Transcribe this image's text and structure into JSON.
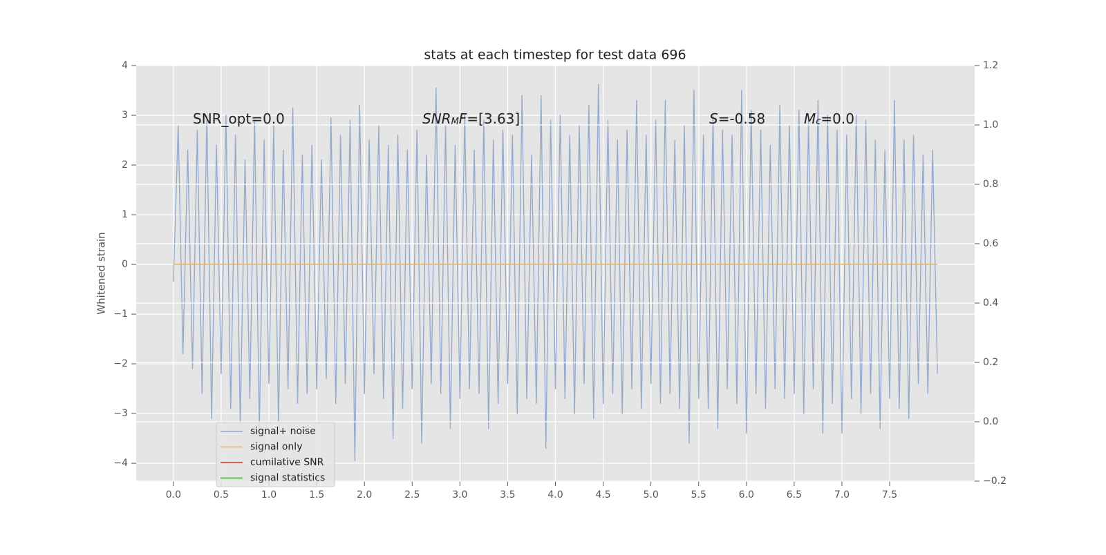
{
  "chart_data": {
    "type": "line",
    "title": "stats at each timestep for test data 696",
    "ylabel": "Whitened strain",
    "xlim": [
      -0.39,
      8.39
    ],
    "ylim": [
      -4.36,
      4.0
    ],
    "y2lim": [
      -0.2,
      1.2
    ],
    "xticks": [
      {
        "value": 0,
        "label": "0.0"
      },
      0.5,
      {
        "value": 1,
        "label": "1.0"
      },
      1.5,
      {
        "value": 2,
        "label": "2.0"
      },
      2.5,
      {
        "value": 3,
        "label": "3.0"
      },
      3.5,
      {
        "value": 4,
        "label": "4.0"
      },
      4.5,
      {
        "value": 5,
        "label": "5.0"
      },
      5.5,
      {
        "value": 6,
        "label": "6.0"
      },
      6.5,
      {
        "value": 7,
        "label": "7.0"
      },
      7.5
    ],
    "yticks": [
      {
        "value": -4,
        "label": "−4"
      },
      {
        "value": -3,
        "label": "−3"
      },
      {
        "value": -2,
        "label": "−2"
      },
      {
        "value": -1,
        "label": "−1"
      },
      0,
      1,
      2,
      3,
      4
    ],
    "y2ticks": [
      {
        "value": -0.2,
        "label": "−0.2"
      },
      {
        "value": 0,
        "label": "0.0"
      },
      0.2,
      0.4,
      0.6,
      0.8,
      {
        "value": 1,
        "label": "1.0"
      },
      1.2
    ],
    "grid": true,
    "legend": "lower left",
    "annotations": [
      [
        {
          "text": "SNR_opt=0.0"
        }
      ],
      [
        {
          "text": "SNR",
          "italic": true
        },
        {
          "text": "M",
          "italic": true,
          "sub": true
        },
        {
          "text": "F",
          "italic": true
        },
        {
          "text": "=[3.63]"
        }
      ],
      [
        {
          "text": "S",
          "italic": true
        },
        {
          "text": "=-0.58"
        }
      ],
      [
        {
          "text": "M",
          "italic": true
        },
        {
          "text": "c",
          "italic": true,
          "sub": true
        },
        {
          "text": "=0.0"
        }
      ]
    ],
    "series": [
      {
        "name": "signal+ noise",
        "color": "#97aacd",
        "x": [
          0,
          0.05,
          0.1,
          0.15,
          0.2,
          0.25,
          0.3,
          0.35,
          0.4,
          0.45,
          0.5,
          0.55,
          0.6,
          0.65,
          0.7,
          0.75,
          0.8,
          0.85,
          0.9,
          0.95,
          1,
          1.05,
          1.1,
          1.15,
          1.2,
          1.25,
          1.3,
          1.35,
          1.4,
          1.45,
          1.5,
          1.55,
          1.6,
          1.65,
          1.7,
          1.75,
          1.8,
          1.85,
          1.9,
          1.95,
          2,
          2.05,
          2.1,
          2.15,
          2.2,
          2.25,
          2.3,
          2.35,
          2.4,
          2.45,
          2.5,
          2.55,
          2.6,
          2.65,
          2.7,
          2.75,
          2.8,
          2.85,
          2.9,
          2.95,
          3,
          3.05,
          3.1,
          3.15,
          3.2,
          3.25,
          3.3,
          3.35,
          3.4,
          3.45,
          3.5,
          3.55,
          3.6,
          3.65,
          3.7,
          3.75,
          3.8,
          3.85,
          3.9,
          3.95,
          4,
          4.05,
          4.1,
          4.15,
          4.2,
          4.25,
          4.3,
          4.35,
          4.4,
          4.45,
          4.5,
          4.55,
          4.6,
          4.65,
          4.7,
          4.75,
          4.8,
          4.85,
          4.9,
          4.95,
          5,
          5.05,
          5.1,
          5.15,
          5.2,
          5.25,
          5.3,
          5.35,
          5.4,
          5.45,
          5.5,
          5.55,
          5.6,
          5.65,
          5.7,
          5.75,
          5.8,
          5.85,
          5.9,
          5.95,
          6,
          6.05,
          6.1,
          6.15,
          6.2,
          6.25,
          6.3,
          6.35,
          6.4,
          6.45,
          6.5,
          6.55,
          6.6,
          6.65,
          6.7,
          6.75,
          6.8,
          6.85,
          6.9,
          6.95,
          7,
          7.05,
          7.1,
          7.15,
          7.2,
          7.25,
          7.3,
          7.35,
          7.4,
          7.45,
          7.5,
          7.55,
          7.6,
          7.65,
          7.7,
          7.75,
          7.8,
          7.85,
          7.9,
          7.95,
          8
        ],
        "values": [
          -0.35,
          2.8,
          -1.8,
          2.3,
          -2.1,
          2.7,
          -2.6,
          3.0,
          -3.1,
          2.4,
          -2.2,
          3.0,
          -2.9,
          2.6,
          -3.2,
          2.1,
          -2.7,
          2.9,
          -3.3,
          2.5,
          -2.4,
          2.8,
          -3.2,
          2.3,
          -2.5,
          3.15,
          -2.8,
          2.2,
          -2.6,
          2.4,
          -2.5,
          2.1,
          -2.3,
          2.95,
          -2.8,
          2.6,
          -2.4,
          2.9,
          -3.95,
          3.2,
          -2.6,
          2.5,
          -2.2,
          2.8,
          -2.7,
          2.4,
          -3.5,
          2.6,
          -2.9,
          2.3,
          -2.5,
          2.7,
          -3.6,
          2.2,
          -2.4,
          3.55,
          -2.6,
          2.8,
          -3.3,
          2.4,
          -2.7,
          3.0,
          -2.5,
          2.3,
          -2.6,
          2.9,
          -3.3,
          2.5,
          -2.8,
          2.7,
          -2.4,
          2.6,
          -3.0,
          3.4,
          -2.7,
          2.2,
          -2.8,
          3.4,
          -3.7,
          2.9,
          -2.5,
          3.0,
          -2.7,
          2.6,
          -3.0,
          2.8,
          -2.4,
          3.2,
          -3.1,
          3.62,
          -2.8,
          2.9,
          -2.6,
          2.5,
          -3.0,
          2.7,
          -2.5,
          3.3,
          -2.9,
          2.6,
          -2.4,
          2.9,
          -2.8,
          3.3,
          -2.6,
          2.5,
          -2.9,
          2.8,
          -3.6,
          3.5,
          -2.7,
          2.6,
          -2.9,
          3.0,
          -3.3,
          2.7,
          -2.5,
          2.6,
          -2.8,
          3.5,
          -3.4,
          3.1,
          -2.6,
          2.7,
          -2.9,
          2.4,
          -2.5,
          3.2,
          -2.7,
          2.8,
          -2.6,
          3.1,
          -3.0,
          2.9,
          -2.5,
          3.3,
          -3.4,
          3.0,
          -2.8,
          2.7,
          -3.4,
          2.6,
          -2.7,
          3.0,
          -3.0,
          2.9,
          -2.6,
          2.5,
          -3.3,
          2.3,
          -2.7,
          3.3,
          -2.9,
          2.5,
          -3.1,
          2.6,
          -2.4,
          2.2,
          -2.6,
          2.3,
          -2.2
        ]
      },
      {
        "name": "signal only",
        "color": "#f0b449",
        "x": [
          0,
          8
        ],
        "values": [
          0,
          0
        ]
      },
      {
        "name": "cumilative SNR",
        "color": "#e0301e",
        "axis": "y2",
        "x": [],
        "values": []
      },
      {
        "name": "signal statistics",
        "color": "#3a9e3a",
        "axis": "y2",
        "x": [],
        "values": []
      }
    ]
  }
}
